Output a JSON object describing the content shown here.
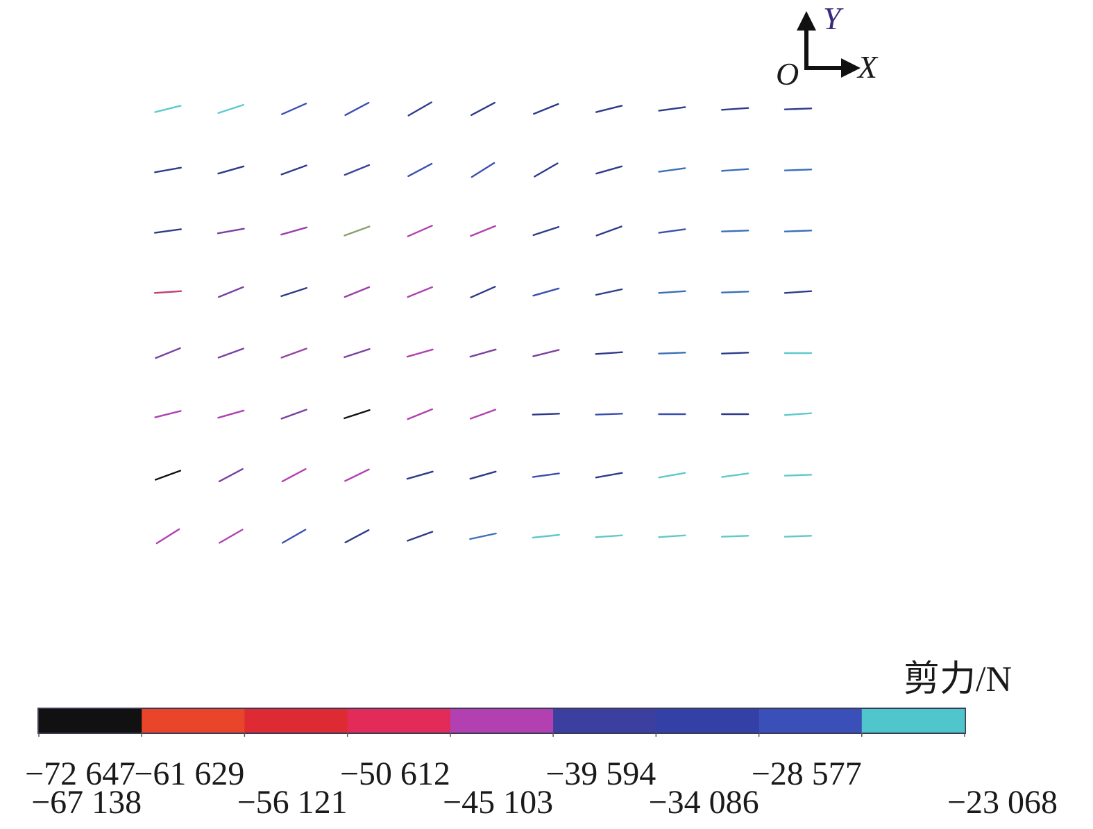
{
  "axes": {
    "origin": "O",
    "x": "X",
    "y": "Y",
    "x_color": "#1a1a1a",
    "y_color": "#3a2a7a"
  },
  "legend": {
    "unit_label": "剪力/N",
    "segment_colors": [
      "#111111",
      "#e8452a",
      "#de2a32",
      "#e32b5a",
      "#b240b0",
      "#3b3fa0",
      "#3340a6",
      "#3a50b8",
      "#4fc6cc"
    ],
    "tick_labels": [
      "−72 647",
      "−67 138",
      "−61 629",
      "−56 121",
      "−50 612",
      "−45 103",
      "−39 594",
      "−34 086",
      "−28 577",
      "−23 068"
    ],
    "range": [
      -72647,
      -23068
    ]
  },
  "vector_field": {
    "columns": 11,
    "rows": 8,
    "cells": [
      [
        {
          "a": 14,
          "c": "#5fc9cc"
        },
        {
          "a": 18,
          "c": "#5fc9cc"
        },
        {
          "a": 24,
          "c": "#3a4fb0"
        },
        {
          "a": 28,
          "c": "#3a4fb0"
        },
        {
          "a": 30,
          "c": "#2d3a8a"
        },
        {
          "a": 28,
          "c": "#2d3a8a"
        },
        {
          "a": 22,
          "c": "#2d3a8a"
        },
        {
          "a": 14,
          "c": "#2d3a8a"
        },
        {
          "a": 8,
          "c": "#2d3a8a"
        },
        {
          "a": 4,
          "c": "#2d3a8a"
        },
        {
          "a": 2,
          "c": "#2d3a8a"
        }
      ],
      [
        {
          "a": 10,
          "c": "#2d3a8a"
        },
        {
          "a": 16,
          "c": "#2d3a8a"
        },
        {
          "a": 20,
          "c": "#2d3a8a"
        },
        {
          "a": 22,
          "c": "#3b3fa0"
        },
        {
          "a": 28,
          "c": "#3a4fb0"
        },
        {
          "a": 32,
          "c": "#3a4fb0"
        },
        {
          "a": 30,
          "c": "#2d3a8a"
        },
        {
          "a": 16,
          "c": "#2d3a8a"
        },
        {
          "a": 8,
          "c": "#3a6fb8"
        },
        {
          "a": 4,
          "c": "#3a6fb8"
        },
        {
          "a": 2,
          "c": "#3a6fb8"
        }
      ],
      [
        {
          "a": 8,
          "c": "#2d3a8a"
        },
        {
          "a": 10,
          "c": "#7a3fa0"
        },
        {
          "a": 16,
          "c": "#9a3fa8"
        },
        {
          "a": 20,
          "c": "#8aa070"
        },
        {
          "a": 24,
          "c": "#b240b0"
        },
        {
          "a": 22,
          "c": "#b240b0"
        },
        {
          "a": 18,
          "c": "#2d3a8a"
        },
        {
          "a": 20,
          "c": "#2d3a8a"
        },
        {
          "a": 8,
          "c": "#3a4fb0"
        },
        {
          "a": 2,
          "c": "#3a6fb8"
        },
        {
          "a": 2,
          "c": "#3a6fb8"
        }
      ],
      [
        {
          "a": 4,
          "c": "#c0407a"
        },
        {
          "a": 22,
          "c": "#7a3fa0"
        },
        {
          "a": 18,
          "c": "#2d3a8a"
        },
        {
          "a": 22,
          "c": "#9a3fa8"
        },
        {
          "a": 22,
          "c": "#b240b0"
        },
        {
          "a": 24,
          "c": "#2d3a8a"
        },
        {
          "a": 16,
          "c": "#3a4fb0"
        },
        {
          "a": 12,
          "c": "#2d3a8a"
        },
        {
          "a": 4,
          "c": "#3a6fb8"
        },
        {
          "a": 2,
          "c": "#3a6fb8"
        },
        {
          "a": 4,
          "c": "#2d3a8a"
        }
      ],
      [
        {
          "a": 22,
          "c": "#7a3fa0"
        },
        {
          "a": 20,
          "c": "#7a3fa0"
        },
        {
          "a": 20,
          "c": "#9a3fa8"
        },
        {
          "a": 18,
          "c": "#7a3fa0"
        },
        {
          "a": 16,
          "c": "#b240b0"
        },
        {
          "a": 16,
          "c": "#7a3fa0"
        },
        {
          "a": 14,
          "c": "#7a3fa0"
        },
        {
          "a": 4,
          "c": "#2d3a8a"
        },
        {
          "a": 2,
          "c": "#3a6fb8"
        },
        {
          "a": 2,
          "c": "#2d3a8a"
        },
        {
          "a": 0,
          "c": "#5fc9cc"
        }
      ],
      [
        {
          "a": 14,
          "c": "#b240b0"
        },
        {
          "a": 16,
          "c": "#b240b0"
        },
        {
          "a": 20,
          "c": "#7a3fa0"
        },
        {
          "a": 18,
          "c": "#111111"
        },
        {
          "a": 22,
          "c": "#b240b0"
        },
        {
          "a": 20,
          "c": "#b240b0"
        },
        {
          "a": 2,
          "c": "#2d3a8a"
        },
        {
          "a": 2,
          "c": "#3a4fb0"
        },
        {
          "a": 0,
          "c": "#3a4fb0"
        },
        {
          "a": 0,
          "c": "#2d3a8a"
        },
        {
          "a": 4,
          "c": "#5fc9cc"
        }
      ],
      [
        {
          "a": 20,
          "c": "#111111"
        },
        {
          "a": 28,
          "c": "#7a3fa0"
        },
        {
          "a": 28,
          "c": "#b240b0"
        },
        {
          "a": 26,
          "c": "#b240b0"
        },
        {
          "a": 16,
          "c": "#2d3a8a"
        },
        {
          "a": 16,
          "c": "#2d3a8a"
        },
        {
          "a": 8,
          "c": "#3a4fb0"
        },
        {
          "a": 10,
          "c": "#2d3a8a"
        },
        {
          "a": 10,
          "c": "#5fc9cc"
        },
        {
          "a": 8,
          "c": "#5fc9cc"
        },
        {
          "a": 2,
          "c": "#5fc9cc"
        }
      ],
      [
        {
          "a": 32,
          "c": "#b240b0"
        },
        {
          "a": 30,
          "c": "#b240b0"
        },
        {
          "a": 30,
          "c": "#3a4fb0"
        },
        {
          "a": 28,
          "c": "#2d3a8a"
        },
        {
          "a": 20,
          "c": "#2d3a8a"
        },
        {
          "a": 12,
          "c": "#3a6fb8"
        },
        {
          "a": 6,
          "c": "#5fc9cc"
        },
        {
          "a": 4,
          "c": "#5fc9cc"
        },
        {
          "a": 4,
          "c": "#5fc9cc"
        },
        {
          "a": 2,
          "c": "#5fc9cc"
        },
        {
          "a": 2,
          "c": "#5fc9cc"
        }
      ]
    ]
  }
}
